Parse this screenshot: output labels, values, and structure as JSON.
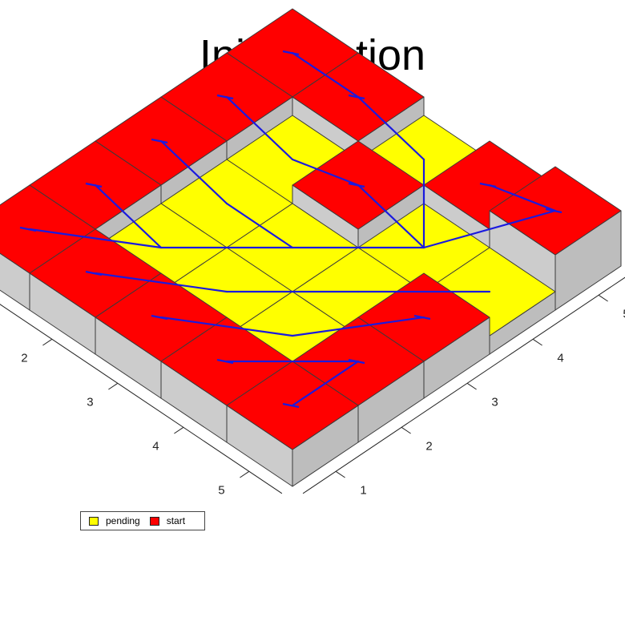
{
  "title": "Initialisation",
  "colors": {
    "start": "#ff0000",
    "pending": "#ffff00",
    "wall": "#cccccc",
    "wall_dark": "#bdbdbd",
    "edge": "#3a3a3a",
    "tree": "#1a1adf"
  },
  "axes": {
    "x_ticks": [
      "1",
      "2",
      "3",
      "4",
      "5"
    ],
    "y_ticks": [
      "1",
      "2",
      "3",
      "4",
      "5"
    ]
  },
  "grid": {
    "size": 5,
    "cells": [
      [
        "start",
        "start",
        "start",
        "start",
        "start"
      ],
      [
        "start",
        "pending",
        "pending",
        "pending",
        "start"
      ],
      [
        "start",
        "pending",
        "pending",
        "start",
        "pending"
      ],
      [
        "start",
        "pending",
        "pending",
        "pending",
        "start"
      ],
      [
        "start",
        "start",
        "start",
        "pending",
        "start"
      ]
    ],
    "heights": [
      [
        2,
        2,
        2,
        2,
        2
      ],
      [
        2,
        1,
        1,
        1,
        2
      ],
      [
        2,
        1,
        1,
        2,
        1
      ],
      [
        2,
        1,
        1,
        1,
        2
      ],
      [
        2,
        2,
        2,
        1,
        3
      ]
    ]
  },
  "legend": {
    "items": [
      {
        "label": "pending",
        "color": "#ffff00"
      },
      {
        "label": "start",
        "color": "#ff0000"
      }
    ]
  }
}
